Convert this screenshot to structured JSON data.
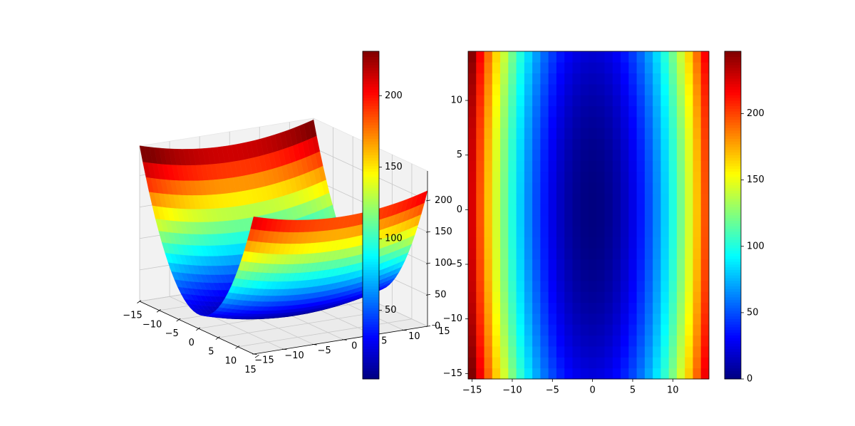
{
  "chart_data": [
    {
      "type": "surface3d",
      "function": "z = x^2 + y^2 / 10 (quadratic bowl, colormap jet)",
      "x": {
        "range": [
          -15,
          14
        ],
        "ticks": [
          -15,
          -10,
          -5,
          0,
          5,
          10,
          15
        ],
        "tick_labels": [
          "−15",
          "−10",
          "−5",
          "0",
          "5",
          "10",
          "15"
        ]
      },
      "y": {
        "range": [
          -15,
          14
        ],
        "ticks": [
          -15,
          -10,
          -5,
          0,
          5,
          10,
          15
        ],
        "tick_labels": [
          "−15",
          "−10",
          "−5",
          "0",
          "5",
          "10",
          "15"
        ]
      },
      "z": {
        "range": [
          0,
          247
        ],
        "ticks": [
          0,
          50,
          100,
          150,
          200
        ],
        "tick_labels": [
          "0",
          "50",
          "100",
          "150",
          "200"
        ]
      },
      "colormap": "jet",
      "grid": true,
      "colorbar": {
        "range": [
          2,
          231
        ],
        "ticks": [
          50,
          100,
          150,
          200
        ],
        "tick_labels": [
          "50",
          "100",
          "150",
          "200"
        ]
      }
    },
    {
      "type": "heatmap",
      "function": "z = x^2 + y^2 / 10",
      "colormap": "jet",
      "x": {
        "start": -15,
        "end": 14,
        "step": 1,
        "ticks": [
          -15,
          -10,
          -5,
          0,
          5,
          10
        ],
        "tick_labels": [
          "−15",
          "−10",
          "−5",
          "0",
          "5",
          "10"
        ]
      },
      "y": {
        "start": -15,
        "end": 14,
        "step": 1,
        "ticks": [
          -15,
          -10,
          -5,
          0,
          5,
          10
        ],
        "tick_labels": [
          "−15",
          "−10",
          "−5",
          "0",
          "5",
          "10"
        ]
      },
      "value_range": [
        0,
        247
      ],
      "colorbar": {
        "range": [
          0,
          247
        ],
        "ticks": [
          0,
          50,
          100,
          150,
          200
        ],
        "tick_labels": [
          "0",
          "50",
          "100",
          "150",
          "200"
        ]
      }
    }
  ]
}
